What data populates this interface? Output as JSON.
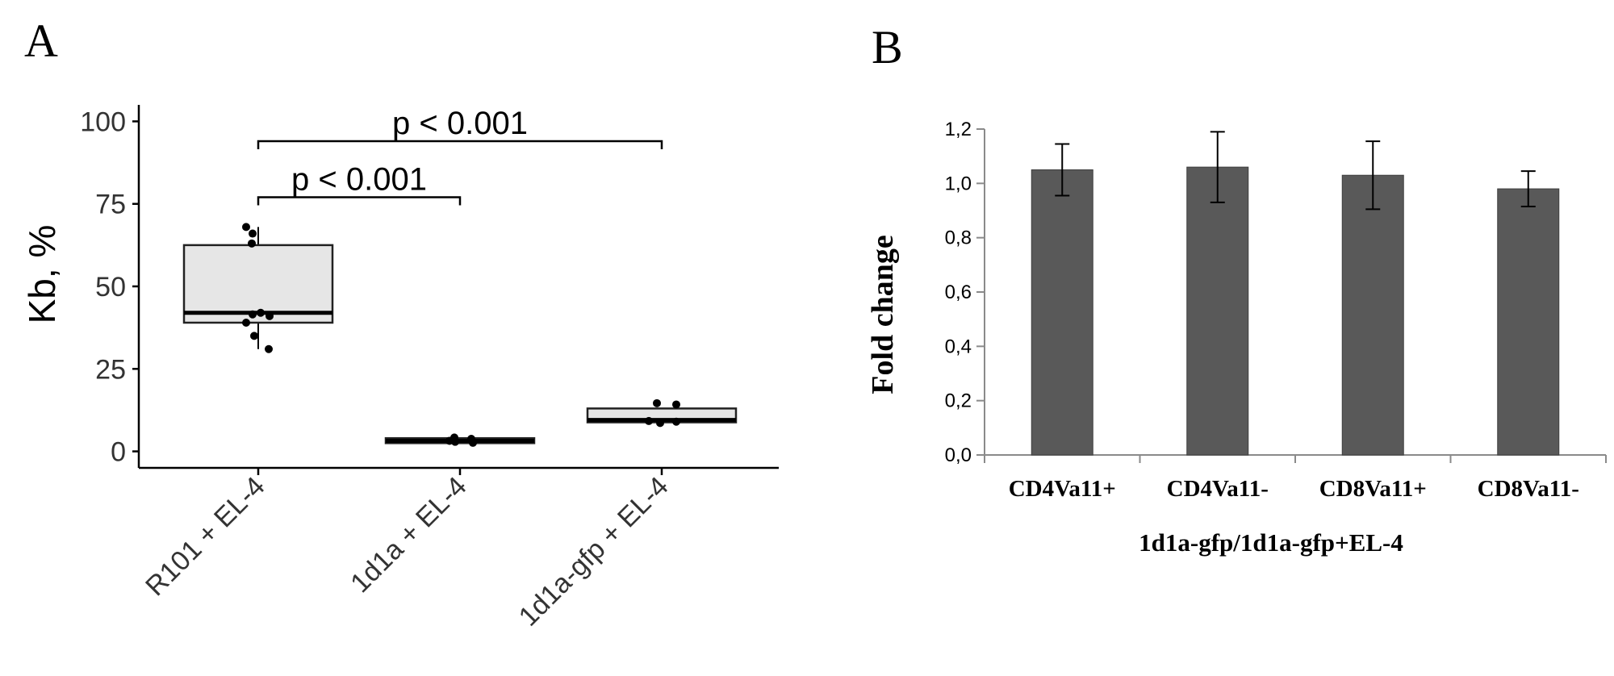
{
  "panel_a": {
    "label": "A"
  },
  "panel_b": {
    "label": "B"
  },
  "chart_data": [
    {
      "type": "box",
      "ylabel": "Kb, %",
      "ylim": [
        -5,
        105
      ],
      "yticks": [
        0,
        25,
        50,
        75,
        100
      ],
      "categories": [
        "R101 + EL-4",
        "1d1a + EL-4",
        "1d1a-gfp + EL-4"
      ],
      "boxes": [
        {
          "q1": 39,
          "median": 42,
          "q3": 62.5,
          "whisker_low": 31,
          "whisker_high": 68
        },
        {
          "q1": 2.5,
          "median": 3.2,
          "q3": 4,
          "whisker_low": 2.5,
          "whisker_high": 4
        },
        {
          "q1": 8.8,
          "median": 9.5,
          "q3": 13,
          "whisker_low": 8.8,
          "whisker_high": 13
        }
      ],
      "points": [
        [
          68,
          66,
          63,
          42,
          41.5,
          41,
          39,
          35,
          31
        ],
        [
          4.2,
          3.8,
          3.2,
          2.9,
          2.6
        ],
        [
          14.6,
          14.2,
          9.2,
          9,
          8.6
        ]
      ],
      "annotations": [
        {
          "from": 0,
          "to": 1,
          "y": 77,
          "text": "p < 0.001"
        },
        {
          "from": 0,
          "to": 2,
          "y": 94,
          "text": "p < 0.001"
        }
      ],
      "grid": false
    },
    {
      "type": "bar",
      "xlabel": "1d1a-gfp/1d1a-gfp+EL-4",
      "ylabel": "Fold change",
      "ylim": [
        0,
        1.2
      ],
      "yticks": [
        "0,0",
        "0,2",
        "0,4",
        "0,6",
        "0,8",
        "1,0",
        "1,2"
      ],
      "categories": [
        "CD4Va11+",
        "CD4Va11-",
        "CD8Va11+",
        "CD8Va11-"
      ],
      "values": [
        1.05,
        1.06,
        1.03,
        0.98
      ],
      "error": [
        0.095,
        0.13,
        0.125,
        0.065
      ],
      "bar_color": "#595959",
      "grid": false
    }
  ]
}
